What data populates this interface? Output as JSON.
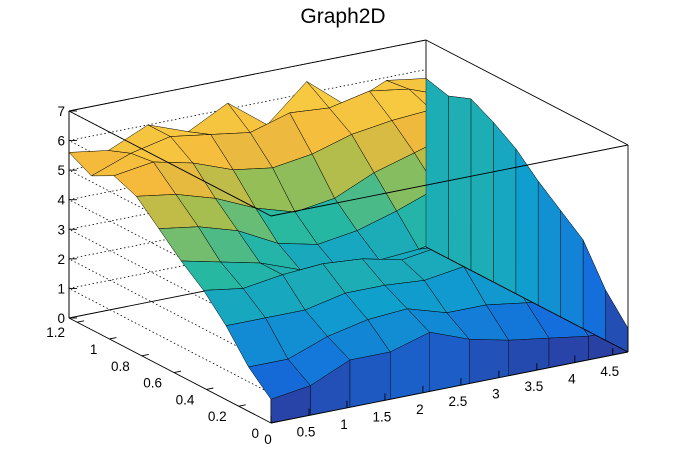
{
  "chart_data": {
    "type": "surface3d",
    "title": "Graph2D",
    "xlabel": "",
    "ylabel": "",
    "zlabel": "",
    "xlim": [
      0,
      4.7
    ],
    "ylim": [
      0,
      1.25
    ],
    "zlim": [
      0,
      7
    ],
    "x_ticks": [
      "0",
      "0.5",
      "1",
      "1.5",
      "2",
      "2.5",
      "3",
      "3.5",
      "4",
      "4.5"
    ],
    "y_ticks": [
      "0",
      "0.2",
      "0.4",
      "0.6",
      "0.8",
      "1",
      "1.2"
    ],
    "z_ticks": [
      "0",
      "1",
      "2",
      "3",
      "4",
      "5",
      "6",
      "7"
    ],
    "colormap": "parula (blue to yellow)",
    "grid": true,
    "x": [
      0,
      0.52,
      1.04,
      1.57,
      2.09,
      2.61,
      3.13,
      3.66,
      4.18,
      4.7
    ],
    "y": [
      0,
      0.139,
      0.278,
      0.417,
      0.556,
      0.694,
      0.833,
      0.972,
      1.111,
      1.25
    ],
    "z": [
      [
        0.8,
        1.0,
        1.6,
        1.6,
        2.0,
        1.5,
        1.2,
        1.0,
        0.8,
        0.8
      ],
      [
        1.5,
        1.5,
        2.0,
        2.3,
        2.4,
        2.0,
        2.0,
        1.8,
        1.6,
        1.7
      ],
      [
        2.5,
        2.5,
        2.5,
        2.8,
        2.8,
        2.7,
        2.9,
        2.7,
        2.8,
        3.0
      ],
      [
        3.3,
        3.1,
        3.3,
        3.4,
        3.3,
        3.0,
        3.2,
        3.4,
        3.5,
        3.6
      ],
      [
        3.9,
        3.6,
        3.3,
        2.8,
        2.5,
        2.6,
        2.7,
        3.0,
        3.7,
        4.2
      ],
      [
        4.6,
        4.4,
        4.0,
        3.3,
        3.0,
        3.2,
        3.6,
        4.1,
        4.7,
        4.9
      ],
      [
        5.3,
        5.1,
        4.7,
        4.1,
        3.7,
        3.9,
        4.5,
        4.9,
        5.3,
        5.4
      ],
      [
        5.6,
        5.8,
        5.5,
        5.0,
        4.8,
        5.0,
        5.4,
        5.6,
        5.7,
        5.8
      ],
      [
        5.2,
        5.7,
        6.0,
        5.8,
        5.6,
        6.0,
        5.9,
        6.2,
        6.0,
        5.5
      ],
      [
        5.6,
        5.4,
        6.0,
        5.5,
        6.2,
        5.2,
        6.4,
        5.3,
        5.9,
        5.7
      ]
    ]
  }
}
